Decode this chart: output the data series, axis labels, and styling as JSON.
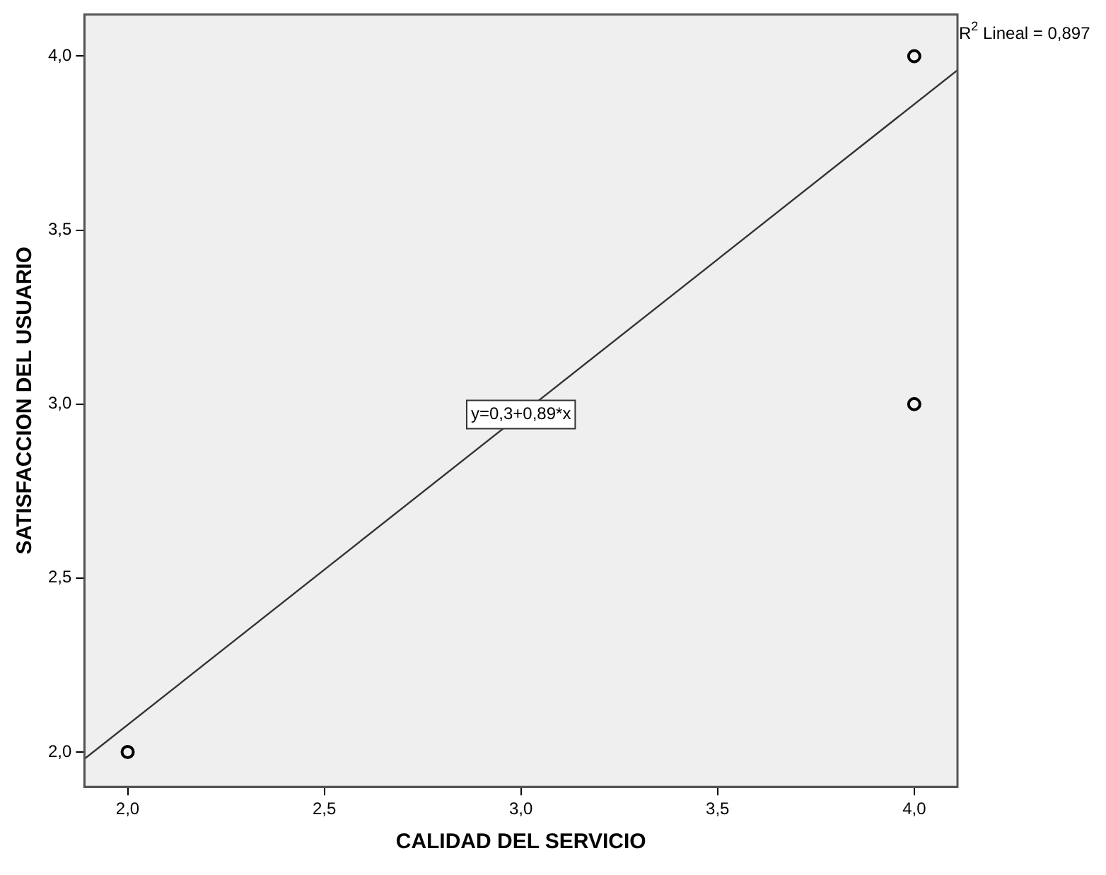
{
  "chart_data": {
    "type": "scatter",
    "xlabel": "CALIDAD DEL SERVICIO",
    "ylabel": "SATISFACCION DEL USUARIO",
    "series": [
      {
        "x": [
          2,
          4,
          4
        ],
        "values": [
          2,
          4,
          3
        ],
        "color": "#000000",
        "marker": "circle"
      },
      {
        "type": "line",
        "x": [
          1.89,
          4.11
        ],
        "values": [
          1.98,
          3.96
        ],
        "color": "#333333",
        "marker": "none"
      }
    ],
    "xlim": [
      1.89,
      4.11
    ],
    "ylim": [
      1.9,
      4.12
    ],
    "xticks": [
      {
        "value": 2,
        "label": "2,0"
      },
      {
        "value": 2.5,
        "label": "2,5"
      },
      {
        "value": 3,
        "label": "3,0"
      },
      {
        "value": 3.5,
        "label": "3,5"
      },
      {
        "value": 4,
        "label": "4,0"
      }
    ],
    "yticks": [
      {
        "value": 2,
        "label": "2,0"
      },
      {
        "value": 2.5,
        "label": "2,5"
      },
      {
        "value": 3,
        "label": "3,0"
      },
      {
        "value": 3.5,
        "label": "3,5"
      },
      {
        "value": 4,
        "label": "4,0"
      }
    ],
    "grid": false,
    "legend": false,
    "annotations": [
      {
        "text": "y=0,3+0,89*x",
        "x": 3,
        "y": 2.97
      },
      "R$^{2}$ Lineal = 0,897"
    ]
  }
}
